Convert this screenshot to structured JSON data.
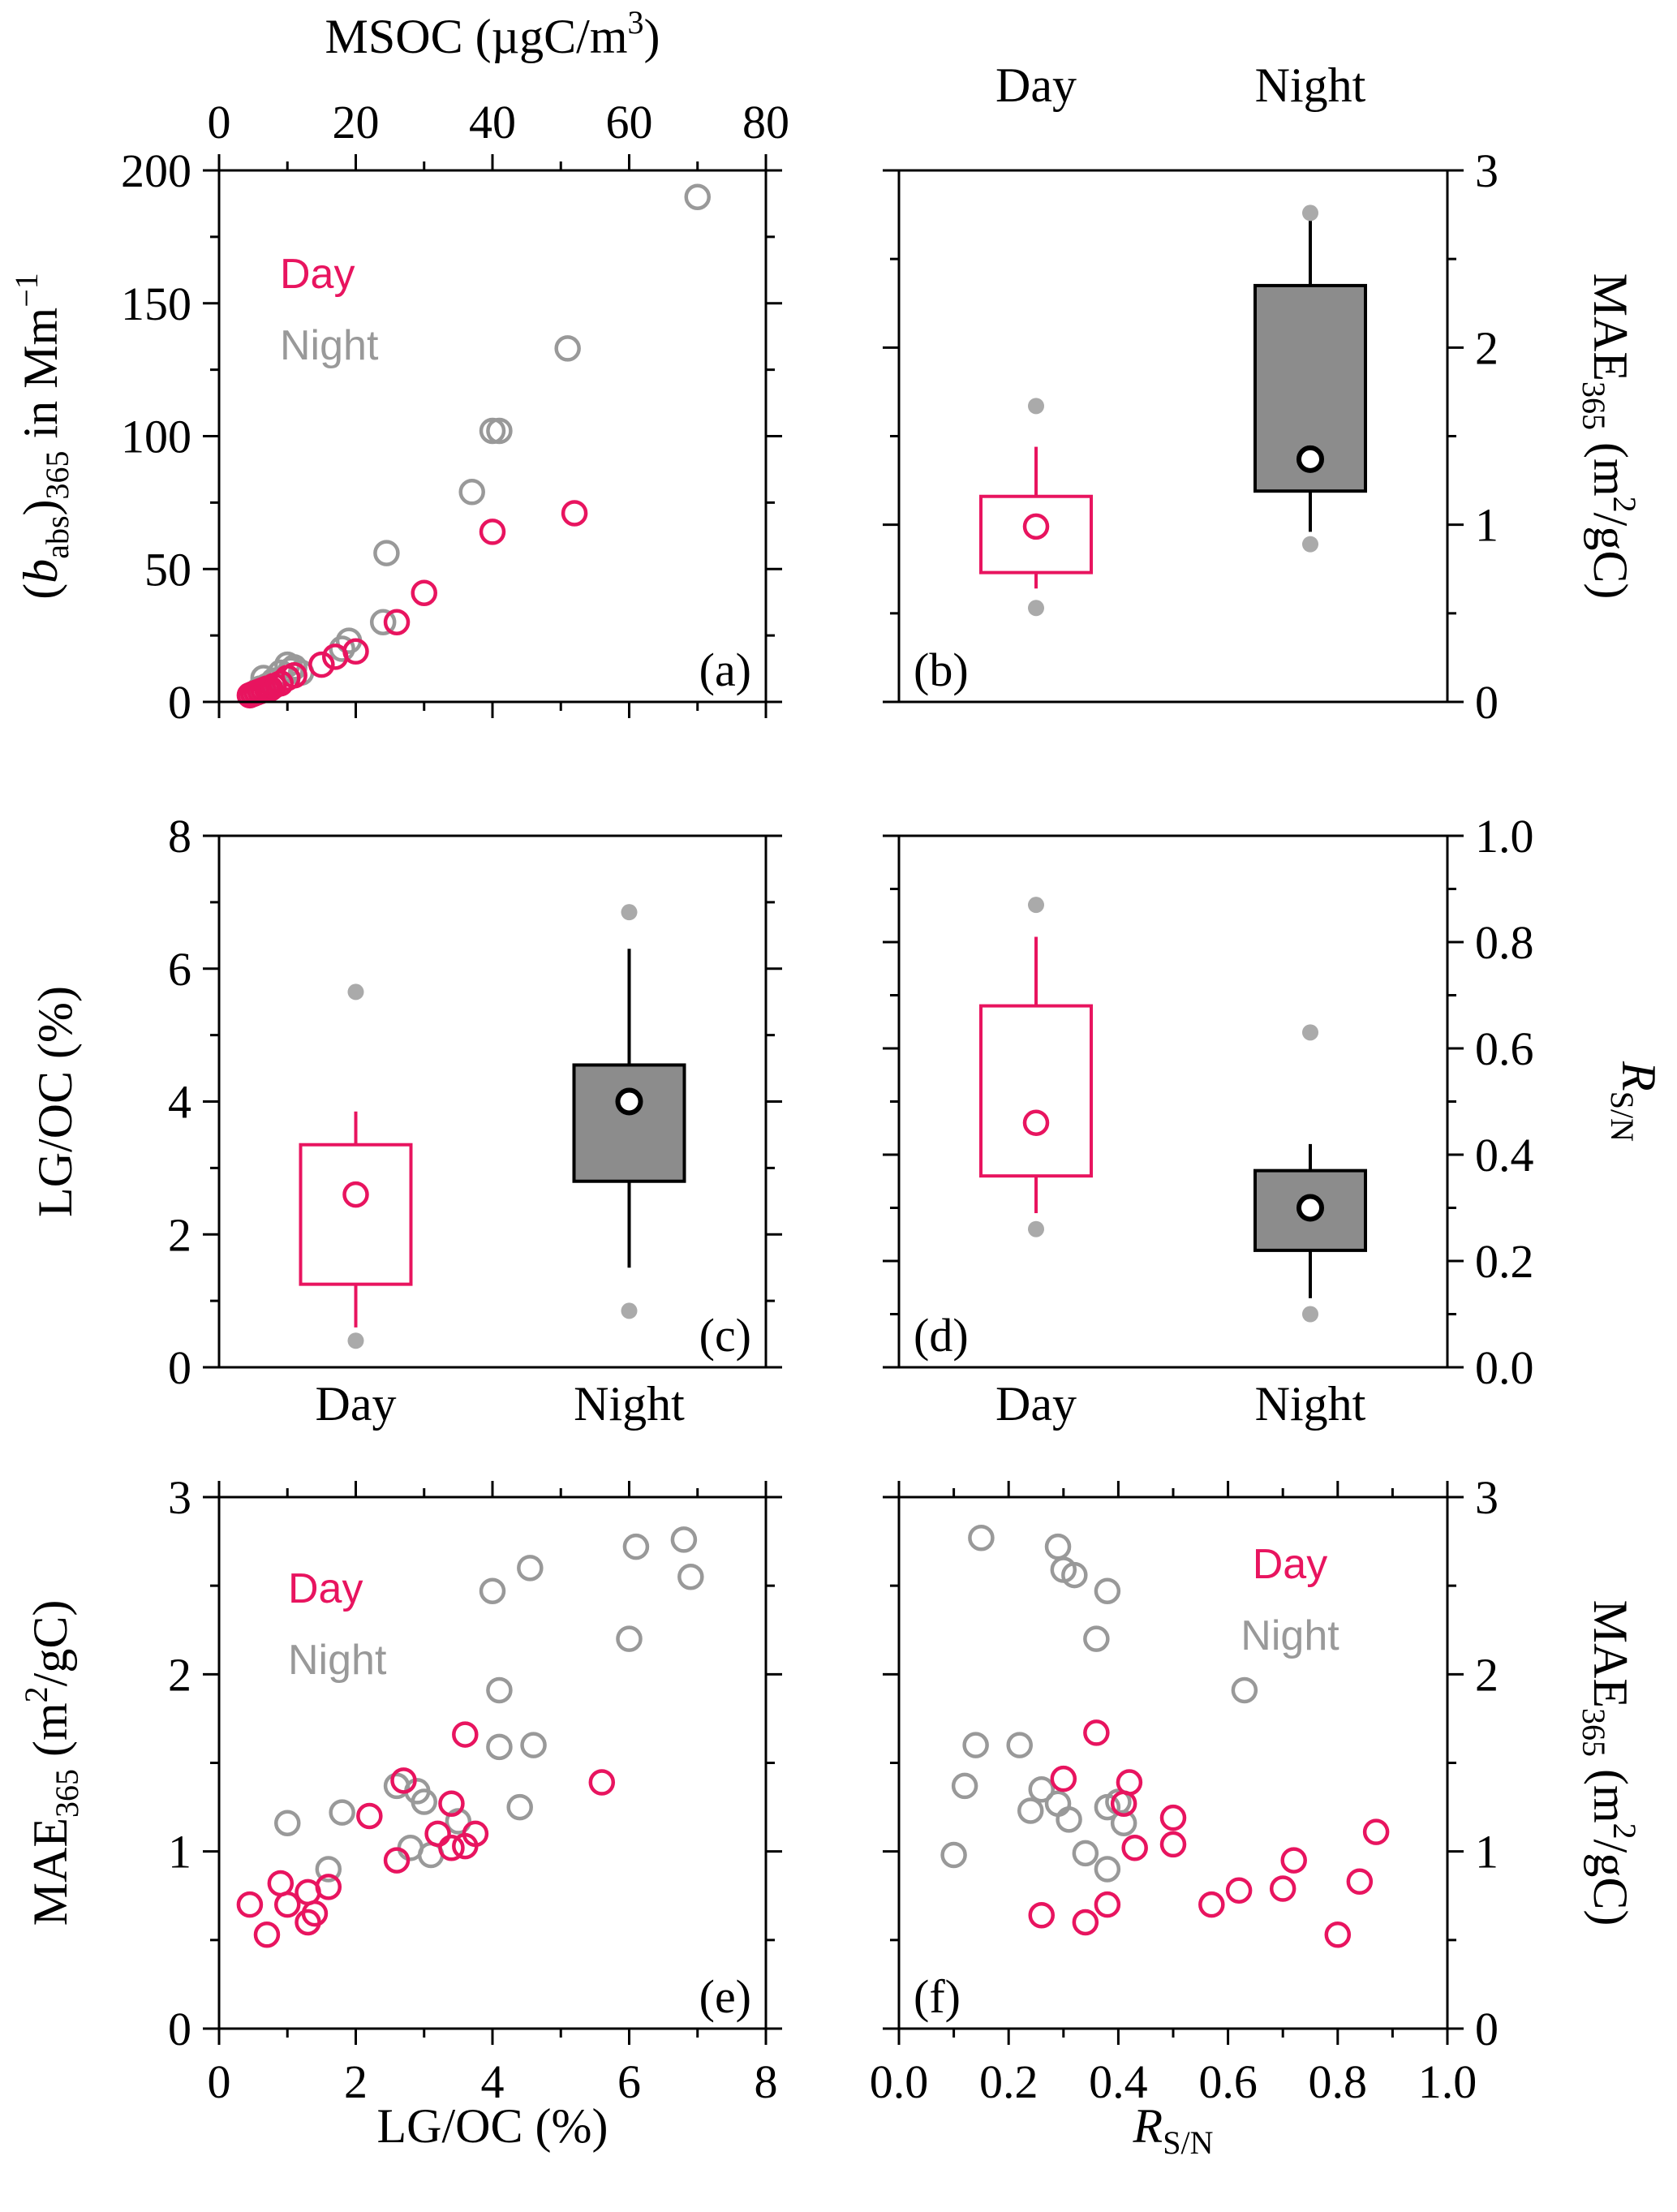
{
  "colors": {
    "day": "#e8145f",
    "night": "#999999",
    "night_box": "#8c8c8c",
    "outlier": "#aaaaaa",
    "axis": "#000000"
  },
  "chart_data": [
    {
      "panel": "a",
      "type": "scatter",
      "panel_label": "(a)",
      "top_axis_title": "MSOC (µgC/m³)",
      "y_title": {
        "open": "(",
        "italic": "b",
        "sub": "abs",
        "close": ")",
        "sub2": "365",
        "rest": " in Mm",
        "sup": "−1"
      },
      "xlim": [
        0,
        80
      ],
      "ylim": [
        0,
        200
      ],
      "x_ticks": [
        "0",
        "20",
        "40",
        "60",
        "80"
      ],
      "y_ticks": [
        "0",
        "50",
        "100",
        "150",
        "200"
      ],
      "legend": [
        "Day",
        "Night"
      ],
      "legend_position": "top-left",
      "series": [
        {
          "name": "Day",
          "points": [
            [
              4.5,
              2.5
            ],
            [
              5,
              3
            ],
            [
              5.5,
              3.5
            ],
            [
              6,
              4
            ],
            [
              6.5,
              4.5
            ],
            [
              7,
              5
            ],
            [
              7.5,
              5
            ],
            [
              8,
              6
            ],
            [
              9,
              7
            ],
            [
              10,
              9
            ],
            [
              11,
              10
            ],
            [
              15,
              14
            ],
            [
              17,
              17
            ],
            [
              20,
              19
            ],
            [
              26,
              30
            ],
            [
              30,
              41
            ],
            [
              40,
              64
            ],
            [
              52,
              71
            ]
          ]
        },
        {
          "name": "Night",
          "points": [
            [
              5,
              3
            ],
            [
              6,
              5
            ],
            [
              6.5,
              9
            ],
            [
              7,
              6
            ],
            [
              8,
              8
            ],
            [
              9,
              11
            ],
            [
              10,
              14
            ],
            [
              10.5,
              12
            ],
            [
              11,
              13
            ],
            [
              12,
              11
            ],
            [
              18,
              20
            ],
            [
              19,
              23
            ],
            [
              24,
              30
            ],
            [
              24.5,
              56
            ],
            [
              37,
              79
            ],
            [
              40,
              102
            ],
            [
              41,
              102
            ],
            [
              51,
              133
            ],
            [
              70,
              190
            ]
          ]
        }
      ]
    },
    {
      "panel": "b",
      "type": "box",
      "panel_label": "(b)",
      "categories": [
        "Day",
        "Night"
      ],
      "y_title": {
        "main": "MAE",
        "sub": "365",
        "unit_pre": " (m",
        "sup": "2",
        "unit_post": "/gC)"
      },
      "ylim": [
        0,
        3
      ],
      "y_ticks": [
        "0",
        "1",
        "2",
        "3"
      ],
      "boxes": [
        {
          "category": "Day",
          "whisker_low": 0.64,
          "q1": 0.73,
          "median": 0.99,
          "q3": 1.16,
          "whisker_high": 1.44,
          "outliers": [
            0.53,
            1.67
          ]
        },
        {
          "category": "Night",
          "whisker_low": 0.96,
          "q1": 1.19,
          "median": 1.37,
          "q3": 2.35,
          "whisker_high": 2.72,
          "outliers": [
            0.89,
            2.76
          ]
        }
      ]
    },
    {
      "panel": "c",
      "type": "box",
      "panel_label": "(c)",
      "categories": [
        "Day",
        "Night"
      ],
      "y_title": "LG/OC (%)",
      "ylim": [
        0,
        8
      ],
      "y_ticks": [
        "0",
        "2",
        "4",
        "6",
        "8"
      ],
      "boxes": [
        {
          "category": "Day",
          "whisker_low": 0.6,
          "q1": 1.25,
          "median": 2.6,
          "q3": 3.35,
          "whisker_high": 3.85,
          "outliers": [
            0.4,
            5.65
          ]
        },
        {
          "category": "Night",
          "whisker_low": 1.5,
          "q1": 2.8,
          "median": 4.0,
          "q3": 4.55,
          "whisker_high": 6.3,
          "outliers": [
            0.85,
            6.85
          ]
        }
      ]
    },
    {
      "panel": "d",
      "type": "box",
      "panel_label": "(d)",
      "categories": [
        "Day",
        "Night"
      ],
      "y_title": {
        "italic": "R",
        "sub": "S/N"
      },
      "ylim": [
        0,
        1
      ],
      "y_ticks": [
        "0.0",
        "0.2",
        "0.4",
        "0.6",
        "0.8",
        "1.0"
      ],
      "boxes": [
        {
          "category": "Day",
          "whisker_low": 0.29,
          "q1": 0.36,
          "median": 0.46,
          "q3": 0.68,
          "whisker_high": 0.81,
          "outliers": [
            0.26,
            0.87
          ]
        },
        {
          "category": "Night",
          "whisker_low": 0.13,
          "q1": 0.22,
          "median": 0.3,
          "q3": 0.37,
          "whisker_high": 0.42,
          "outliers": [
            0.1,
            0.63
          ]
        }
      ]
    },
    {
      "panel": "e",
      "type": "scatter",
      "panel_label": "(e)",
      "x_title": "LG/OC (%)",
      "y_title": {
        "main": "MAE",
        "sub": "365",
        "unit_pre": " (m",
        "sup": "2",
        "unit_post": "/gC)"
      },
      "xlim": [
        0,
        8
      ],
      "ylim": [
        0,
        3
      ],
      "x_ticks": [
        "0",
        "2",
        "4",
        "6",
        "8"
      ],
      "y_ticks": [
        "0",
        "1",
        "2",
        "3"
      ],
      "legend": [
        "Day",
        "Night"
      ],
      "legend_position": "top-left",
      "series": [
        {
          "name": "Day",
          "points": [
            [
              0.45,
              0.7
            ],
            [
              0.7,
              0.53
            ],
            [
              0.9,
              0.82
            ],
            [
              1.0,
              0.7
            ],
            [
              1.3,
              0.77
            ],
            [
              1.3,
              0.6
            ],
            [
              1.4,
              0.65
            ],
            [
              1.6,
              0.8
            ],
            [
              2.2,
              1.2
            ],
            [
              2.6,
              0.95
            ],
            [
              2.7,
              1.4
            ],
            [
              3.2,
              1.1
            ],
            [
              3.4,
              1.27
            ],
            [
              3.4,
              1.02
            ],
            [
              3.6,
              1.03
            ],
            [
              3.75,
              1.1
            ],
            [
              3.6,
              1.66
            ],
            [
              5.6,
              1.39
            ]
          ]
        },
        {
          "name": "Night",
          "points": [
            [
              1.0,
              1.16
            ],
            [
              1.6,
              0.9
            ],
            [
              1.8,
              1.22
            ],
            [
              2.6,
              1.37
            ],
            [
              2.8,
              1.02
            ],
            [
              2.9,
              1.34
            ],
            [
              3.0,
              1.28
            ],
            [
              3.1,
              0.98
            ],
            [
              3.5,
              1.17
            ],
            [
              4.0,
              2.47
            ],
            [
              4.1,
              1.59
            ],
            [
              4.1,
              1.91
            ],
            [
              4.4,
              1.25
            ],
            [
              4.6,
              1.6
            ],
            [
              4.55,
              2.6
            ],
            [
              6.0,
              2.2
            ],
            [
              6.1,
              2.72
            ],
            [
              6.8,
              2.76
            ],
            [
              6.9,
              2.55
            ]
          ]
        }
      ]
    },
    {
      "panel": "f",
      "type": "scatter",
      "panel_label": "(f)",
      "x_title": {
        "italic": "R",
        "sub": "S/N"
      },
      "y_title": {
        "main": "MAE",
        "sub": "365",
        "unit_pre": " (m",
        "sup": "2",
        "unit_post": "/gC)"
      },
      "xlim": [
        0,
        1
      ],
      "ylim": [
        0,
        3
      ],
      "x_ticks": [
        "0.0",
        "0.2",
        "0.4",
        "0.6",
        "0.8",
        "1.0"
      ],
      "y_ticks": [
        "0",
        "1",
        "2",
        "3"
      ],
      "legend": [
        "Day",
        "Night"
      ],
      "legend_position": "top-right",
      "series": [
        {
          "name": "Day",
          "points": [
            [
              0.26,
              0.64
            ],
            [
              0.3,
              1.41
            ],
            [
              0.34,
              0.6
            ],
            [
              0.36,
              1.67
            ],
            [
              0.38,
              0.7
            ],
            [
              0.41,
              1.27
            ],
            [
              0.42,
              1.39
            ],
            [
              0.43,
              1.02
            ],
            [
              0.5,
              1.19
            ],
            [
              0.5,
              1.04
            ],
            [
              0.57,
              0.7
            ],
            [
              0.62,
              0.78
            ],
            [
              0.7,
              0.79
            ],
            [
              0.72,
              0.95
            ],
            [
              0.8,
              0.53
            ],
            [
              0.84,
              0.83
            ],
            [
              0.87,
              1.11
            ]
          ]
        },
        {
          "name": "Night",
          "points": [
            [
              0.1,
              0.98
            ],
            [
              0.12,
              1.37
            ],
            [
              0.14,
              1.6
            ],
            [
              0.15,
              2.77
            ],
            [
              0.22,
              1.6
            ],
            [
              0.24,
              1.23
            ],
            [
              0.26,
              1.35
            ],
            [
              0.29,
              1.27
            ],
            [
              0.29,
              2.72
            ],
            [
              0.3,
              2.59
            ],
            [
              0.31,
              1.18
            ],
            [
              0.32,
              2.56
            ],
            [
              0.34,
              0.99
            ],
            [
              0.36,
              2.2
            ],
            [
              0.38,
              1.25
            ],
            [
              0.38,
              0.9
            ],
            [
              0.38,
              2.47
            ],
            [
              0.4,
              1.28
            ],
            [
              0.41,
              1.16
            ],
            [
              0.63,
              1.91
            ]
          ]
        }
      ]
    }
  ]
}
